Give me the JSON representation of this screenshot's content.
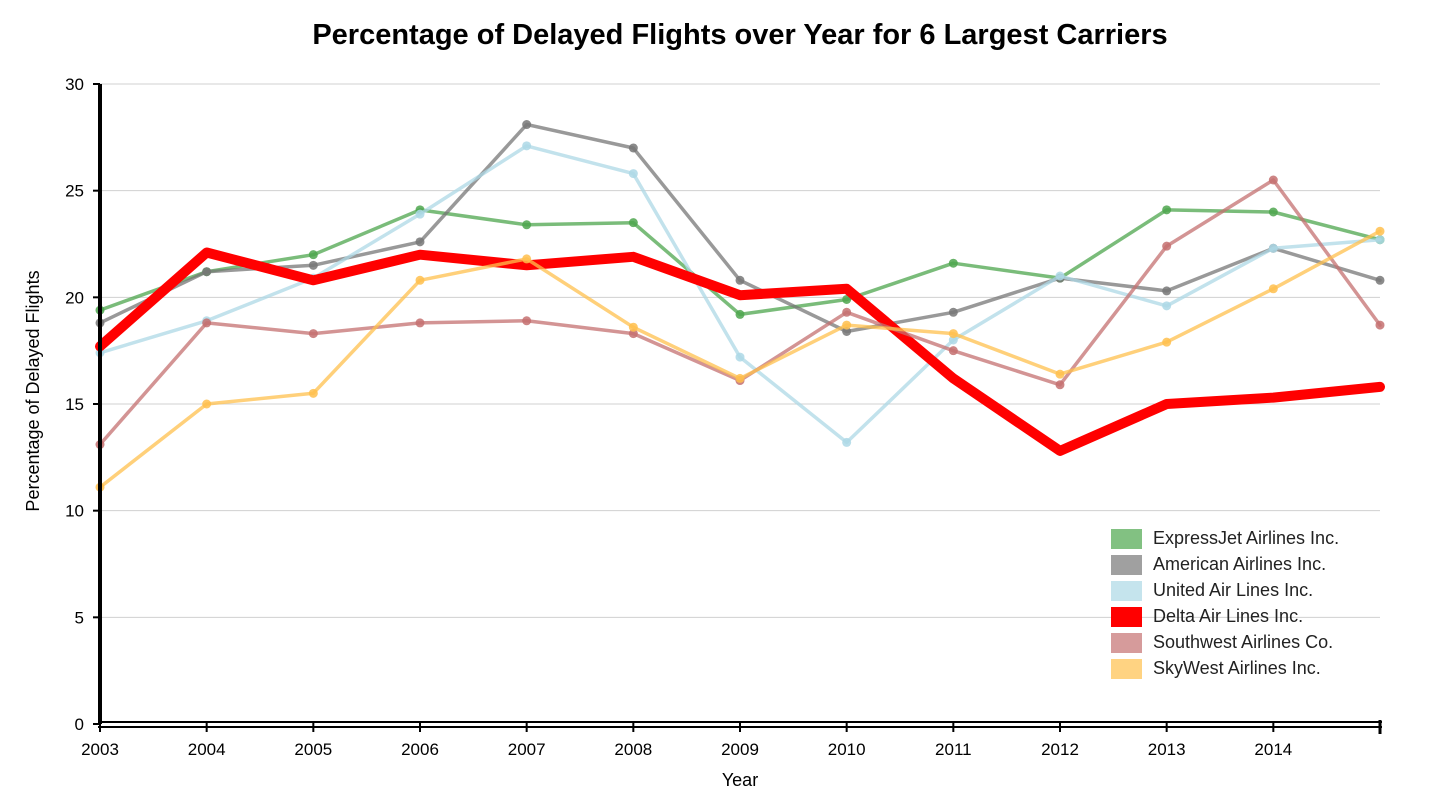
{
  "chart_data": {
    "type": "line",
    "title": "Percentage of Delayed Flights over Year for 6 Largest Carriers",
    "xlabel": "Year",
    "ylabel": "Percentage of Delayed Flights",
    "x": [
      2003,
      2004,
      2005,
      2006,
      2007,
      2008,
      2009,
      2010,
      2011,
      2012,
      2013,
      2014,
      2015
    ],
    "x_tick_labels": [
      "2003",
      "2004",
      "2005",
      "2006",
      "2007",
      "2008",
      "2009",
      "2010",
      "2011",
      "2012",
      "2013",
      "2014"
    ],
    "y_ticks": [
      "0",
      "5",
      "10",
      "15",
      "20",
      "25",
      "30"
    ],
    "xlim": [
      2003,
      2015
    ],
    "ylim": [
      0,
      30
    ],
    "grid": true,
    "legend_position": "bottom-right",
    "series": [
      {
        "name": "ExpressJet Airlines Inc.",
        "color": "#4da64d",
        "highlight": false,
        "values": [
          19.4,
          21.2,
          22.0,
          24.1,
          23.4,
          23.5,
          19.2,
          19.9,
          21.6,
          20.9,
          24.1,
          24.0,
          22.7
        ]
      },
      {
        "name": "American Airlines Inc.",
        "color": "#777777",
        "highlight": false,
        "values": [
          18.8,
          21.2,
          21.5,
          22.6,
          28.1,
          27.0,
          20.8,
          18.4,
          19.3,
          20.9,
          20.3,
          22.3,
          20.8
        ]
      },
      {
        "name": "United Air Lines Inc.",
        "color": "#add8e6",
        "highlight": false,
        "values": [
          17.4,
          18.9,
          20.9,
          23.9,
          27.1,
          25.8,
          17.2,
          13.2,
          18.0,
          21.0,
          19.6,
          22.3,
          22.7
        ]
      },
      {
        "name": "Delta Air Lines Inc.",
        "color": "#ff0000",
        "highlight": true,
        "values": [
          17.7,
          22.1,
          20.8,
          22.0,
          21.5,
          21.9,
          20.1,
          20.4,
          16.2,
          12.8,
          15.0,
          15.3,
          15.8
        ]
      },
      {
        "name": "Southwest Airlines Co.",
        "color": "#c47070",
        "highlight": false,
        "values": [
          13.1,
          18.8,
          18.3,
          18.8,
          18.9,
          18.3,
          16.1,
          19.3,
          17.5,
          15.9,
          22.4,
          25.5,
          18.7
        ]
      },
      {
        "name": "SkyWest Airlines Inc.",
        "color": "#ffc04d",
        "highlight": false,
        "values": [
          11.1,
          15.0,
          15.5,
          20.8,
          21.8,
          18.6,
          16.2,
          18.7,
          18.3,
          16.4,
          17.9,
          20.4,
          23.1
        ]
      }
    ]
  }
}
